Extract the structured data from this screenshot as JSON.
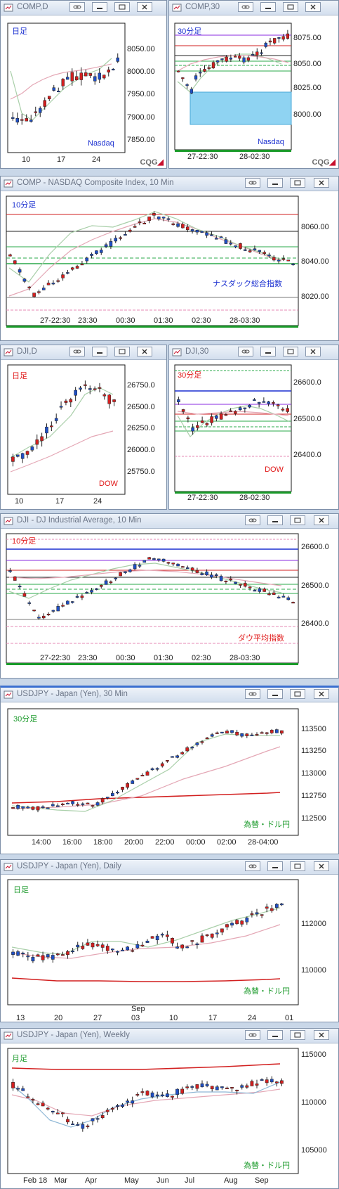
{
  "windows": {
    "comp_d": {
      "title": "COMP,D",
      "period": "日足",
      "label": "Nasdaq",
      "y_ticks": [
        "8050.00",
        "8000.00",
        "7950.00",
        "7900.00",
        "7850.00"
      ],
      "x_ticks": [
        "10",
        "17",
        "24"
      ],
      "brand": "CQG"
    },
    "comp_30": {
      "title": "COMP,30",
      "period": "30分足",
      "label": "Nasdaq",
      "y_ticks": [
        "8075.00",
        "8050.00",
        "8025.00",
        "8000.00"
      ],
      "x_ticks": [
        "27-22:30",
        "28-02:30"
      ],
      "brand": "CQG"
    },
    "comp_10": {
      "title": "COMP - NASDAQ Composite Index, 10 Min",
      "period": "10分足",
      "label": "ナスダック総合指数",
      "y_ticks": [
        "8060.00",
        "8040.00",
        "8020.00"
      ],
      "x_ticks": [
        "27-22:30",
        "23:30",
        "00:30",
        "01:30",
        "02:30",
        "28-03:30"
      ]
    },
    "dji_d": {
      "title": "DJI,D",
      "period": "日足",
      "label": "DOW",
      "y_ticks": [
        "26750.0",
        "26500.0",
        "26250.0",
        "26000.0",
        "25750.0"
      ],
      "x_ticks": [
        "10",
        "17",
        "24"
      ]
    },
    "dji_30": {
      "title": "DJI,30",
      "period": "30分足",
      "label": "DOW",
      "y_ticks": [
        "26600.0",
        "26500.0",
        "26400.0"
      ],
      "x_ticks": [
        "27-22:30",
        "28-02:30"
      ]
    },
    "dji_10": {
      "title": "DJI - DJ Industrial Average, 10 Min",
      "period": "10分足",
      "label": "ダウ平均指数",
      "y_ticks": [
        "26600.0",
        "26500.0",
        "26400.0"
      ],
      "x_ticks": [
        "27-22:30",
        "23:30",
        "00:30",
        "01:30",
        "02:30",
        "28-03:30"
      ]
    },
    "usdjpy_30": {
      "title": "USDJPY - Japan (Yen), 30 Min",
      "period": "30分足",
      "label": "為替・ドル円",
      "y_ticks": [
        "113500",
        "113250",
        "113000",
        "112750",
        "112500"
      ],
      "x_ticks": [
        "14:00",
        "16:00",
        "18:00",
        "20:00",
        "22:00",
        "00:00",
        "02:00",
        "28-04:00"
      ]
    },
    "usdjpy_d": {
      "title": "USDJPY - Japan (Yen), Daily",
      "period": "日足",
      "label": "為替・ドル円",
      "y_ticks": [
        "112000",
        "110000"
      ],
      "x_ticks": [
        "13",
        "20",
        "27",
        "03",
        "10",
        "17",
        "24",
        "01"
      ],
      "x_sub": "Sep"
    },
    "usdjpy_w": {
      "title": "USDJPY - Japan (Yen), Weekly",
      "period": "月足",
      "label": "為替・ドル円",
      "y_ticks": [
        "115000",
        "110000",
        "105000"
      ],
      "x_ticks": [
        "Feb 18",
        "Mar",
        "Apr",
        "May",
        "Jun",
        "Jul",
        "Aug",
        "Sep"
      ]
    }
  },
  "colors": {
    "up": "#1f4fc4",
    "down": "#d21f1f",
    "frame": "#1a1a1a",
    "label_blue": "#1a2fd0",
    "label_red": "#e01818",
    "label_green": "#1a9a2a",
    "accent_green": "#1a9a2a",
    "accent_red": "#c8102e"
  },
  "icons": {
    "link": "link-icon",
    "minimize": "minimize-icon",
    "restore": "restore-icon",
    "close": "close-icon"
  }
}
